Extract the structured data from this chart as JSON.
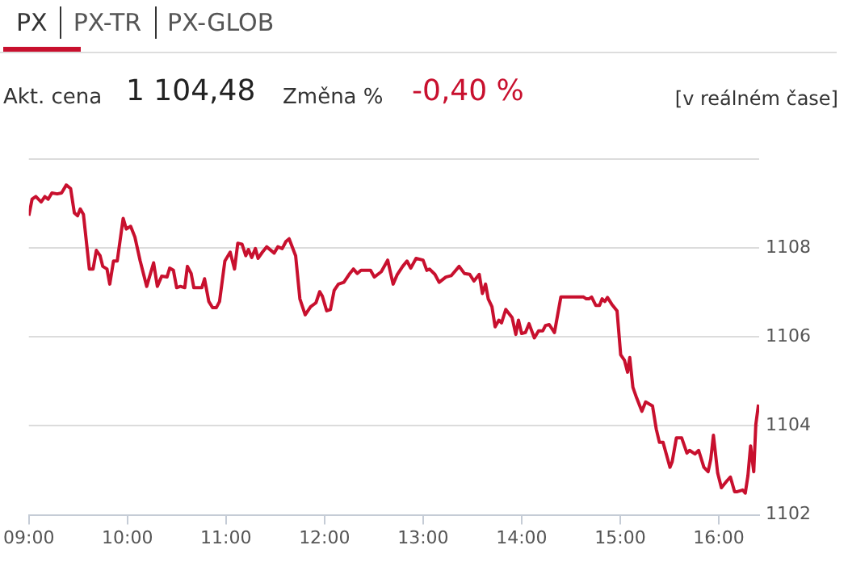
{
  "chart_data": {
    "type": "line",
    "title": "PX",
    "annotations": [
      "PX-TR",
      "PX-GLOB",
      "Akt. cena",
      "1 104,48",
      "Změna %",
      "-0,40 %",
      "[v reálném čase]"
    ],
    "x": [
      9.0,
      9.033,
      9.071,
      9.125,
      9.163,
      9.196,
      9.234,
      9.288,
      9.332,
      9.38,
      9.424,
      9.462,
      9.495,
      9.522,
      9.554,
      9.614,
      9.652,
      9.685,
      9.723,
      9.75,
      9.793,
      9.821,
      9.859,
      9.897,
      9.957,
      9.989,
      10.033,
      10.076,
      10.13,
      10.196,
      10.266,
      10.304,
      10.348,
      10.402,
      10.429,
      10.467,
      10.5,
      10.538,
      10.582,
      10.609,
      10.647,
      10.674,
      10.755,
      10.783,
      10.826,
      10.864,
      10.902,
      10.935,
      10.989,
      11.043,
      11.087,
      11.12,
      11.163,
      11.201,
      11.228,
      11.261,
      11.299,
      11.326,
      11.37,
      11.413,
      11.489,
      11.527,
      11.571,
      11.609,
      11.641,
      11.707,
      11.75,
      11.804,
      11.859,
      11.913,
      11.951,
      11.978,
      12.022,
      12.06,
      12.098,
      12.141,
      12.196,
      12.25,
      12.293,
      12.332,
      12.37,
      12.467,
      12.505,
      12.576,
      12.641,
      12.696,
      12.739,
      12.793,
      12.837,
      12.875,
      12.929,
      13.0,
      13.038,
      13.065,
      13.12,
      13.163,
      13.231,
      13.285,
      13.366,
      13.419,
      13.473,
      13.516,
      13.57,
      13.602,
      13.634,
      13.661,
      13.699,
      13.731,
      13.769,
      13.796,
      13.839,
      13.903,
      13.941,
      13.968,
      14.0,
      14.038,
      14.075,
      14.129,
      14.172,
      14.215,
      14.242,
      14.28,
      14.333,
      14.398,
      14.468,
      14.548,
      14.629,
      14.656,
      14.683,
      14.71,
      14.753,
      14.79,
      14.817,
      14.844,
      14.871,
      14.914,
      14.968,
      15.005,
      15.043,
      15.075,
      15.097,
      15.129,
      15.167,
      15.22,
      15.258,
      15.328,
      15.366,
      15.398,
      15.435,
      15.505,
      15.527,
      15.57,
      15.624,
      15.677,
      15.704,
      15.758,
      15.796,
      15.849,
      15.892,
      15.919,
      15.946,
      15.989,
      16.027,
      16.081,
      16.118,
      16.161,
      16.188,
      16.242,
      16.269,
      16.296,
      16.323,
      16.355,
      16.376,
      16.403
    ],
    "series": [
      {
        "color": "#c8102e",
        "values": [
          1108.73,
          1109.1,
          1109.16,
          1109.04,
          1109.16,
          1109.1,
          1109.24,
          1109.22,
          1109.24,
          1109.42,
          1109.34,
          1108.79,
          1108.73,
          1108.88,
          1108.76,
          1107.53,
          1107.53,
          1107.95,
          1107.83,
          1107.59,
          1107.53,
          1107.19,
          1107.71,
          1107.71,
          1108.67,
          1108.43,
          1108.49,
          1108.25,
          1107.71,
          1107.14,
          1107.67,
          1107.14,
          1107.37,
          1107.35,
          1107.55,
          1107.5,
          1107.11,
          1107.14,
          1107.11,
          1107.59,
          1107.43,
          1107.11,
          1107.11,
          1107.31,
          1106.8,
          1106.66,
          1106.66,
          1106.8,
          1107.71,
          1107.91,
          1107.53,
          1108.11,
          1108.09,
          1107.83,
          1107.97,
          1107.79,
          1107.99,
          1107.77,
          1107.91,
          1108.03,
          1107.89,
          1108.03,
          1107.99,
          1108.15,
          1108.21,
          1107.83,
          1106.86,
          1106.5,
          1106.68,
          1106.77,
          1107.02,
          1106.92,
          1106.59,
          1106.62,
          1107.05,
          1107.19,
          1107.23,
          1107.41,
          1107.53,
          1107.43,
          1107.5,
          1107.5,
          1107.35,
          1107.47,
          1107.73,
          1107.19,
          1107.41,
          1107.59,
          1107.71,
          1107.55,
          1107.77,
          1107.73,
          1107.5,
          1107.53,
          1107.41,
          1107.23,
          1107.35,
          1107.38,
          1107.59,
          1107.43,
          1107.41,
          1107.26,
          1107.41,
          1106.98,
          1107.19,
          1106.86,
          1106.68,
          1106.23,
          1106.38,
          1106.32,
          1106.62,
          1106.44,
          1106.06,
          1106.38,
          1106.08,
          1106.1,
          1106.3,
          1105.98,
          1106.14,
          1106.14,
          1106.26,
          1106.28,
          1106.1,
          1106.9,
          1106.9,
          1106.9,
          1106.9,
          1106.86,
          1106.86,
          1106.9,
          1106.71,
          1106.71,
          1106.86,
          1106.8,
          1106.89,
          1106.74,
          1106.59,
          1105.6,
          1105.48,
          1105.21,
          1105.54,
          1104.87,
          1104.63,
          1104.33,
          1104.54,
          1104.45,
          1103.93,
          1103.63,
          1103.63,
          1103.07,
          1103.19,
          1103.73,
          1103.73,
          1103.39,
          1103.45,
          1103.37,
          1103.45,
          1103.07,
          1102.97,
          1103.25,
          1103.79,
          1102.94,
          1102.61,
          1102.76,
          1102.85,
          1102.52,
          1102.52,
          1102.56,
          1102.49,
          1102.88,
          1103.55,
          1102.97,
          1104.03,
          1104.48
        ]
      }
    ],
    "xlim": [
      9,
      16.41
    ],
    "xticks": [
      {
        "value": 9,
        "label": "09:00"
      },
      {
        "value": 10,
        "label": "10:00"
      },
      {
        "value": 11,
        "label": "11:00"
      },
      {
        "value": 12,
        "label": "12:00"
      },
      {
        "value": 13,
        "label": "13:00"
      },
      {
        "value": 14,
        "label": "14:00"
      },
      {
        "value": 15,
        "label": "15:00"
      },
      {
        "value": 16,
        "label": "16:00"
      }
    ],
    "ylim": [
      1102,
      1110
    ],
    "yticks": [
      1102,
      1104,
      1106,
      1108,
      {
        "value": 1110,
        "label": null
      }
    ],
    "grid": "y",
    "legend": false,
    "marker": "none",
    "line_style": "solid"
  }
}
